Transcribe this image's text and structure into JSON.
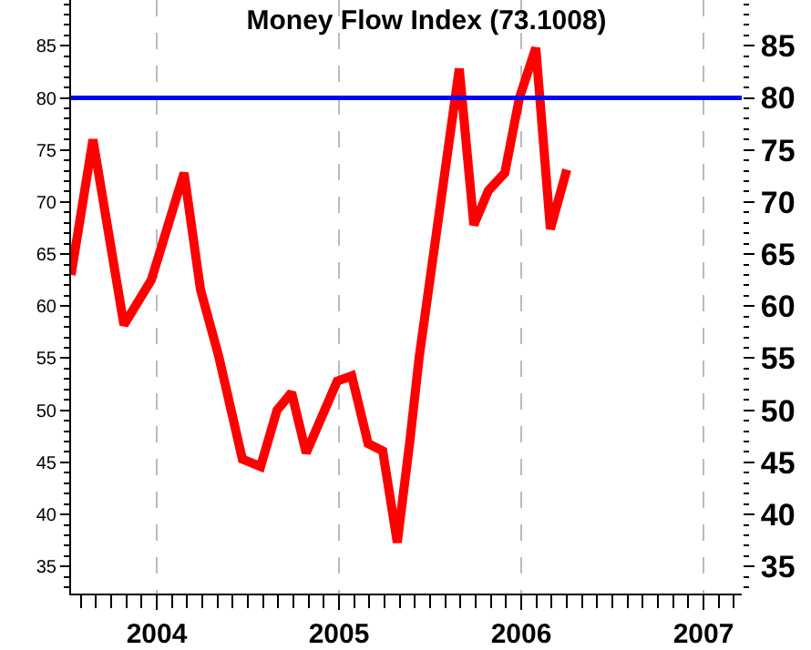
{
  "chart_data": {
    "type": "line",
    "title": "Money Flow Index (73.1008)",
    "x": [
      2003.53,
      2003.65,
      2003.82,
      2003.97,
      2004.15,
      2004.24,
      2004.34,
      2004.47,
      2004.57,
      2004.66,
      2004.74,
      2004.82,
      2004.99,
      2005.07,
      2005.16,
      2005.24,
      2005.32,
      2005.39,
      2005.44,
      2005.66,
      2005.74,
      2005.82,
      2005.91,
      2005.99,
      2006.08,
      2006.16,
      2006.25
    ],
    "series": [
      {
        "color": "#ff0000",
        "values": [
          63.0,
          76.0,
          58.2,
          62.5,
          72.8,
          61.6,
          55.2,
          45.3,
          44.6,
          50.0,
          51.7,
          45.9,
          52.8,
          53.3,
          46.8,
          46.1,
          37.3,
          47.2,
          55.1,
          82.8,
          67.8,
          71.1,
          72.8,
          80.0,
          84.8,
          67.4,
          73.1
        ]
      }
    ],
    "xlim": [
      2003.53,
      2007.21
    ],
    "xticks": [
      2004,
      2005,
      2006,
      2007
    ],
    "ylim": [
      32.4,
      89.4
    ],
    "yticks": [
      35,
      40,
      45,
      50,
      55,
      60,
      65,
      70,
      75,
      80,
      85
    ],
    "y2lim": [
      32.4,
      89.4
    ],
    "y2ticks": [
      35,
      40,
      45,
      50,
      55,
      60,
      65,
      70,
      75,
      80,
      85
    ],
    "ref_lines": [
      {
        "axis": "y",
        "value": 80,
        "color": "#0000ff"
      }
    ],
    "grid": "x",
    "marker": "none",
    "line_style": "solid"
  }
}
